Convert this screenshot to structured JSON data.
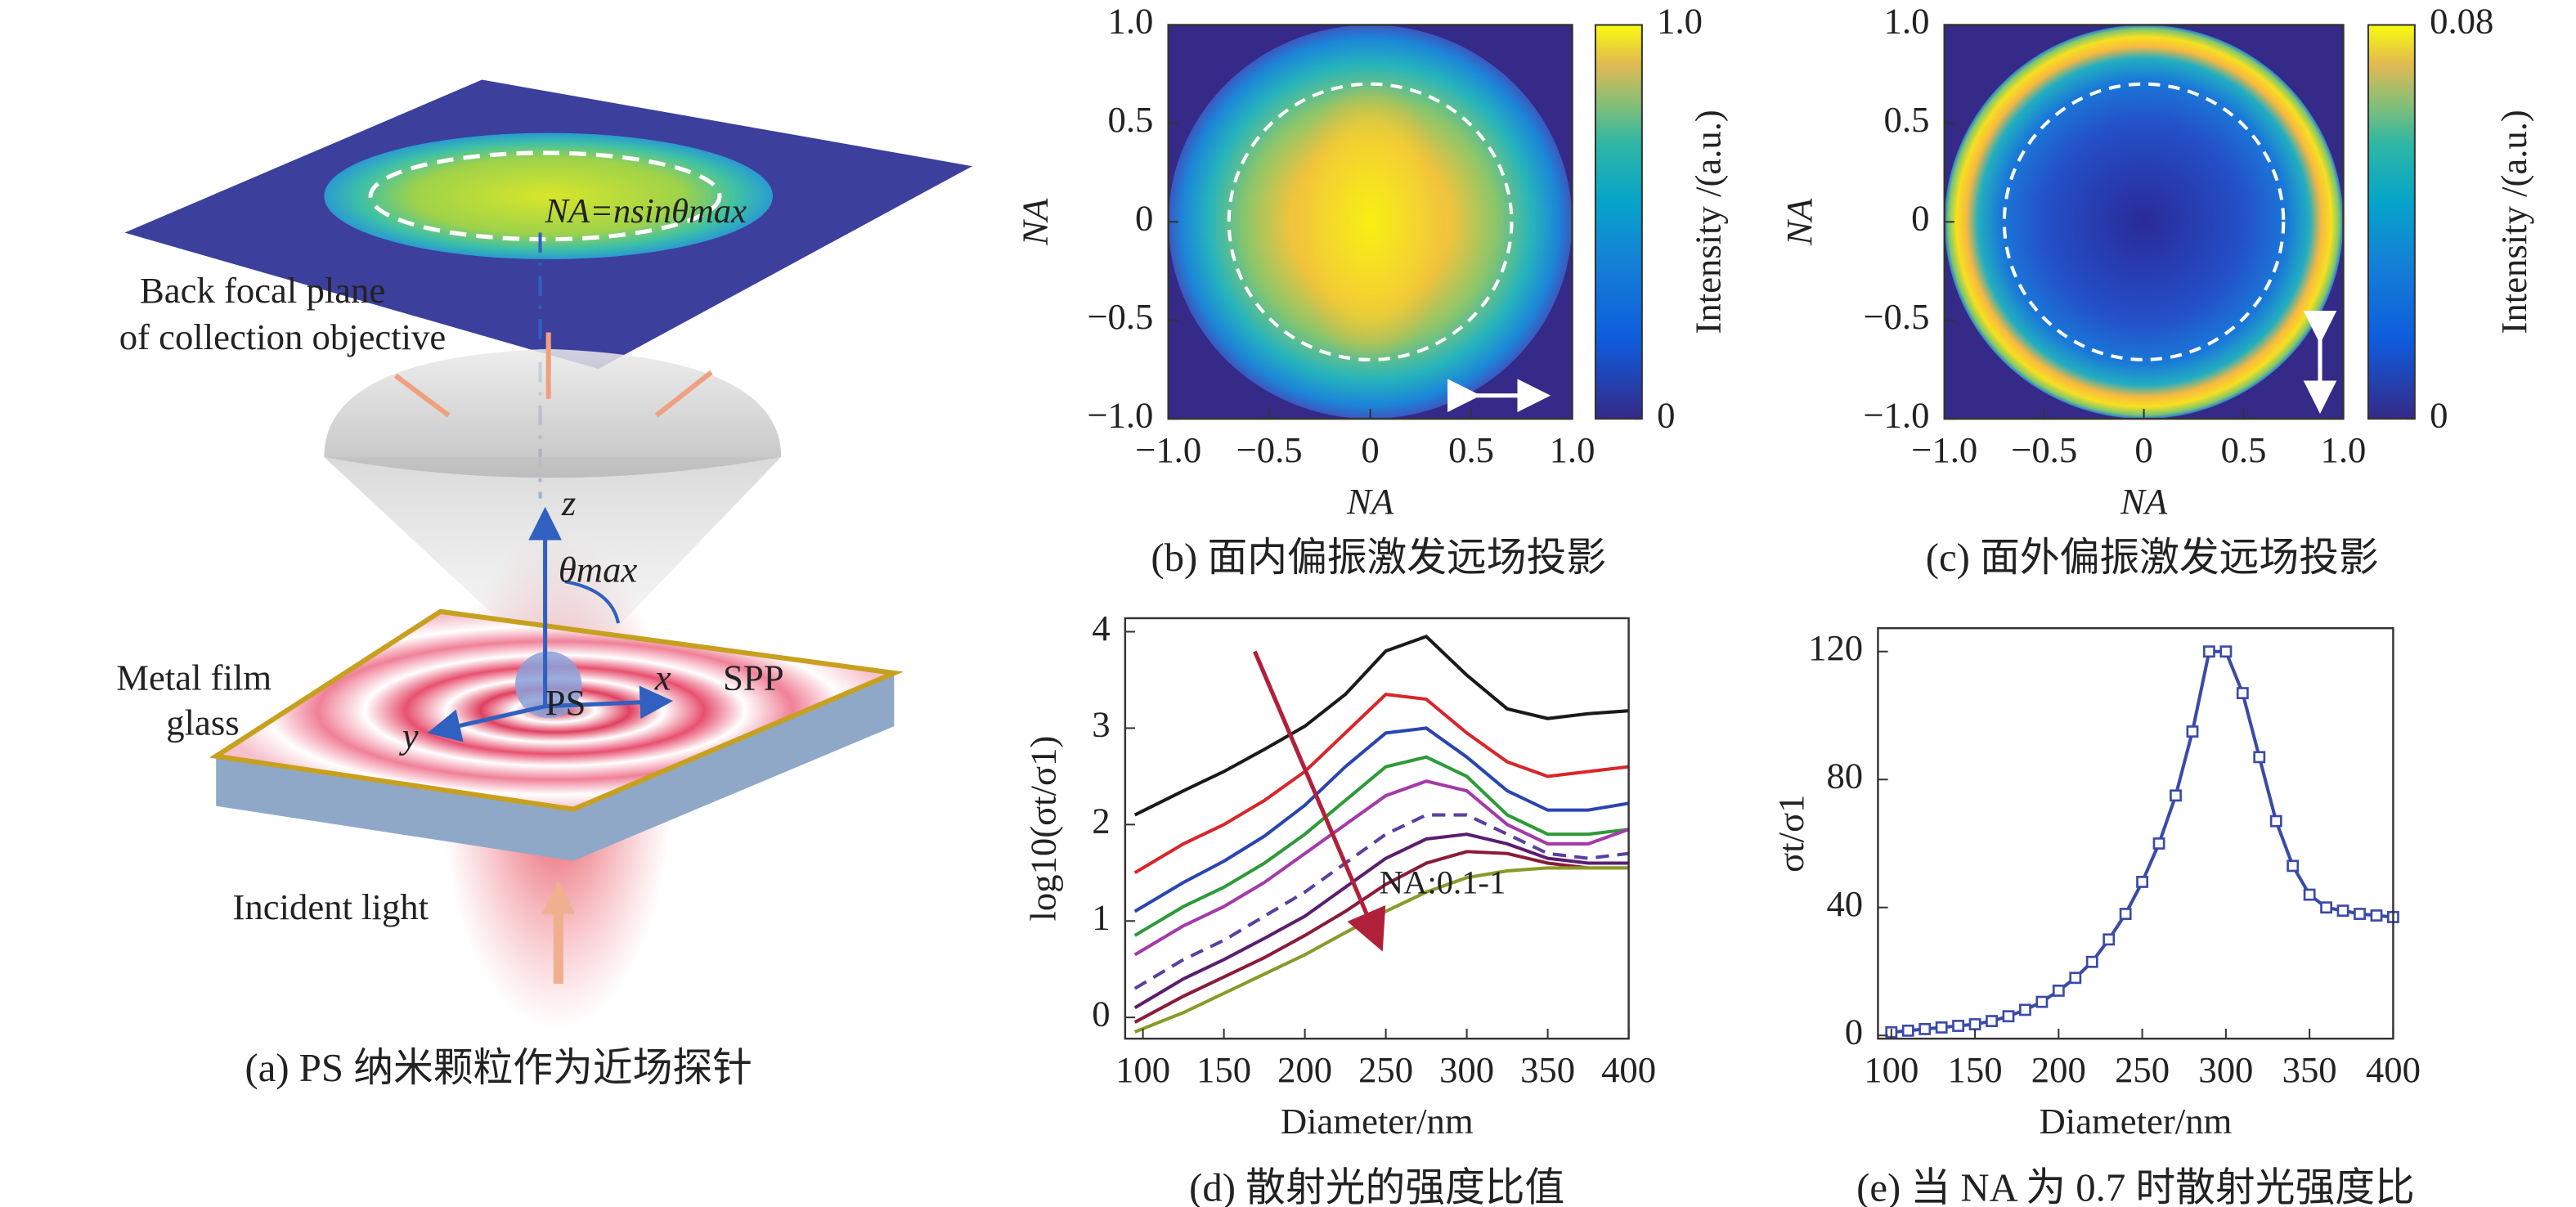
{
  "diagram": {
    "bfp_formula": "NA=nsinθmax",
    "bfp_label_1": "Back focal plane",
    "bfp_label_2": "of collection objective",
    "axis_z": "z",
    "axis_x": "x",
    "axis_y": "y",
    "theta": "θmax",
    "particle": "PS",
    "spp": "SPP",
    "metal": "Metal film",
    "glass": "glass",
    "incident": "Incident light",
    "caption": "(a) PS 纳米颗粒作为近场探针"
  },
  "chart_data": [
    {
      "type": "heatmap",
      "xlabel": "NA",
      "ylabel": "NA",
      "xlim": [
        -1,
        1
      ],
      "ylim": [
        -1,
        1
      ],
      "xticks": [
        {
          "value": -1,
          "label": "−1.0"
        },
        {
          "value": -0.5,
          "label": "−0.5"
        },
        0,
        0.5,
        {
          "value": 1,
          "label": "1.0"
        }
      ],
      "yticks": [
        {
          "value": -1,
          "label": "−1.0"
        },
        {
          "value": -0.5,
          "label": "−0.5"
        },
        0,
        0.5,
        {
          "value": 1,
          "label": "1.0"
        }
      ],
      "colorbar": {
        "label": "Intensity /(a.u.)",
        "lim": [
          0,
          1
        ],
        "ticks": [
          0,
          {
            "value": 1,
            "label": "1.0"
          }
        ]
      },
      "caption": "(b) 面内偏振激发远场投影"
    },
    {
      "type": "heatmap",
      "xlabel": "NA",
      "ylabel": "NA",
      "xlim": [
        -1,
        1
      ],
      "ylim": [
        -1,
        1
      ],
      "xticks": [
        {
          "value": -1,
          "label": "−1.0"
        },
        {
          "value": -0.5,
          "label": "−0.5"
        },
        0,
        0.5,
        {
          "value": 1,
          "label": "1.0"
        }
      ],
      "yticks": [
        {
          "value": -1,
          "label": "−1.0"
        },
        {
          "value": -0.5,
          "label": "−0.5"
        },
        0,
        0.5,
        {
          "value": 1,
          "label": "1.0"
        }
      ],
      "colorbar": {
        "label": "Intensity /(a.u.)",
        "lim": [
          0,
          0.08
        ],
        "ticks": [
          0,
          0.08
        ]
      },
      "caption": "(c) 面外偏振激发远场投影"
    },
    {
      "type": "line",
      "xlabel": "Diameter/nm",
      "ylabel": "log10(σt/σ1)",
      "xlim": [
        89,
        400
      ],
      "ylim": [
        -0.22,
        4.14
      ],
      "xticks": [
        100,
        150,
        200,
        250,
        300,
        350,
        400
      ],
      "yticks": [
        0,
        1,
        2,
        3,
        4
      ],
      "annotation": "NA:0.1-1",
      "x": [
        95,
        125,
        150,
        175,
        200,
        225,
        250,
        275,
        300,
        325,
        350,
        375,
        400
      ],
      "series": [
        {
          "color": "#1a1a1a",
          "values": [
            2.1,
            2.35,
            2.55,
            2.78,
            3.02,
            3.35,
            3.8,
            3.95,
            3.55,
            3.2,
            3.1,
            3.15,
            3.18
          ]
        },
        {
          "color": "#d8262b",
          "values": [
            1.5,
            1.8,
            2.0,
            2.25,
            2.55,
            2.95,
            3.35,
            3.3,
            2.95,
            2.65,
            2.5,
            2.55,
            2.6
          ]
        },
        {
          "color": "#2a45b0",
          "values": [
            1.1,
            1.4,
            1.62,
            1.88,
            2.2,
            2.6,
            2.95,
            3.0,
            2.7,
            2.35,
            2.15,
            2.15,
            2.22
          ]
        },
        {
          "color": "#2e9a3a",
          "values": [
            0.85,
            1.15,
            1.35,
            1.6,
            1.9,
            2.25,
            2.6,
            2.7,
            2.5,
            2.1,
            1.9,
            1.9,
            1.95
          ]
        },
        {
          "color": "#a43aa8",
          "values": [
            0.65,
            0.95,
            1.15,
            1.4,
            1.7,
            2.0,
            2.3,
            2.45,
            2.35,
            2.0,
            1.8,
            1.8,
            1.95
          ]
        },
        {
          "color": "#5a3fa0",
          "dashed": true,
          "values": [
            0.3,
            0.6,
            0.8,
            1.05,
            1.3,
            1.6,
            1.9,
            2.1,
            2.1,
            1.9,
            1.7,
            1.65,
            1.7
          ]
        },
        {
          "color": "#5b1e6e",
          "values": [
            0.1,
            0.4,
            0.6,
            0.82,
            1.05,
            1.35,
            1.65,
            1.85,
            1.9,
            1.8,
            1.65,
            1.6,
            1.6
          ]
        },
        {
          "color": "#8a1c3a",
          "values": [
            -0.05,
            0.22,
            0.42,
            0.62,
            0.85,
            1.1,
            1.38,
            1.6,
            1.72,
            1.7,
            1.6,
            1.55,
            1.55
          ]
        },
        {
          "color": "#8a9a2a",
          "values": [
            -0.15,
            0.05,
            0.25,
            0.45,
            0.65,
            0.88,
            1.1,
            1.3,
            1.45,
            1.52,
            1.55,
            1.55,
            1.55
          ]
        }
      ],
      "caption": "(d) 散射光的强度比值"
    },
    {
      "type": "line",
      "xlabel": "Diameter/nm",
      "ylabel": "σt/σ1",
      "xlim": [
        92,
        400
      ],
      "ylim": [
        -1,
        127.3
      ],
      "xticks": [
        100,
        150,
        200,
        250,
        300,
        350,
        400
      ],
      "yticks": [
        0,
        40,
        80,
        120
      ],
      "x": [
        100,
        110,
        120,
        130,
        140,
        150,
        160,
        170,
        180,
        190,
        200,
        210,
        220,
        230,
        240,
        250,
        260,
        270,
        280,
        290,
        300,
        310,
        320,
        330,
        340,
        350,
        360,
        370,
        380,
        390,
        400
      ],
      "series": [
        {
          "color": "#3a4aa8",
          "marker": "square",
          "values": [
            1,
            1.5,
            2,
            2.5,
            3,
            3.5,
            4.5,
            6,
            8,
            10.5,
            14,
            18,
            23,
            30,
            38,
            48,
            60,
            75,
            95,
            120,
            120,
            107,
            87,
            67,
            53,
            44,
            40,
            39,
            38,
            37.5,
            37
          ]
        }
      ],
      "caption": "(e) 当 NA 为 0.7 时散射光强度比"
    }
  ]
}
